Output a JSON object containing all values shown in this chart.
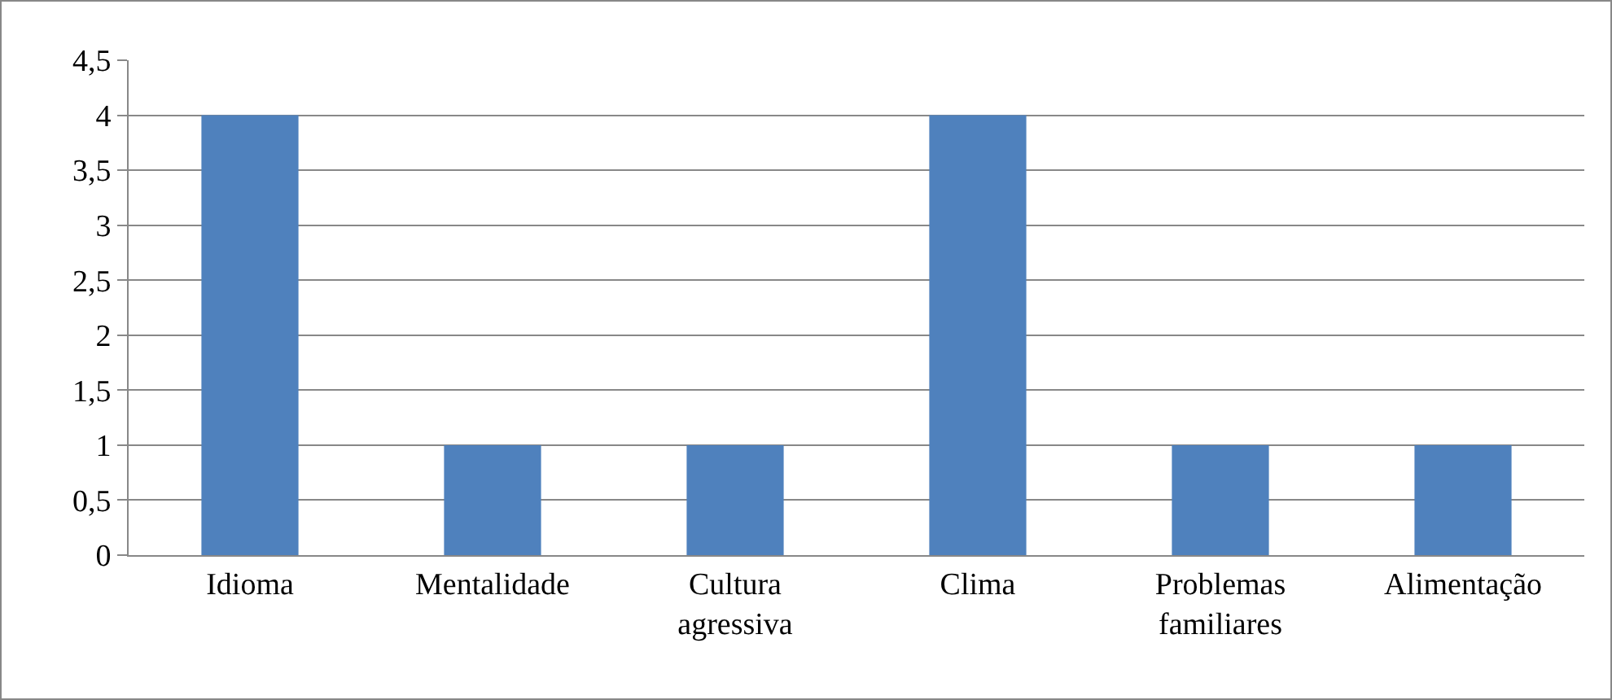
{
  "chart_data": {
    "type": "bar",
    "categories": [
      "Idioma",
      "Mentalidade",
      "Cultura agressiva",
      "Clima",
      "Problemas familiares",
      "Alimentação"
    ],
    "values": [
      4,
      1,
      1,
      4,
      1,
      1
    ],
    "color": "#4f81bd",
    "ylim": [
      0,
      4.5
    ],
    "yticks": [
      0,
      {
        "value": 0.5,
        "label": "0,5"
      },
      1,
      {
        "value": 1.5,
        "label": "1,5"
      },
      2,
      {
        "value": 2.5,
        "label": "2,5"
      },
      3,
      {
        "value": 3.5,
        "label": "3,5"
      },
      4,
      {
        "value": 4.5,
        "label": "4,5"
      }
    ],
    "grid": "y"
  }
}
